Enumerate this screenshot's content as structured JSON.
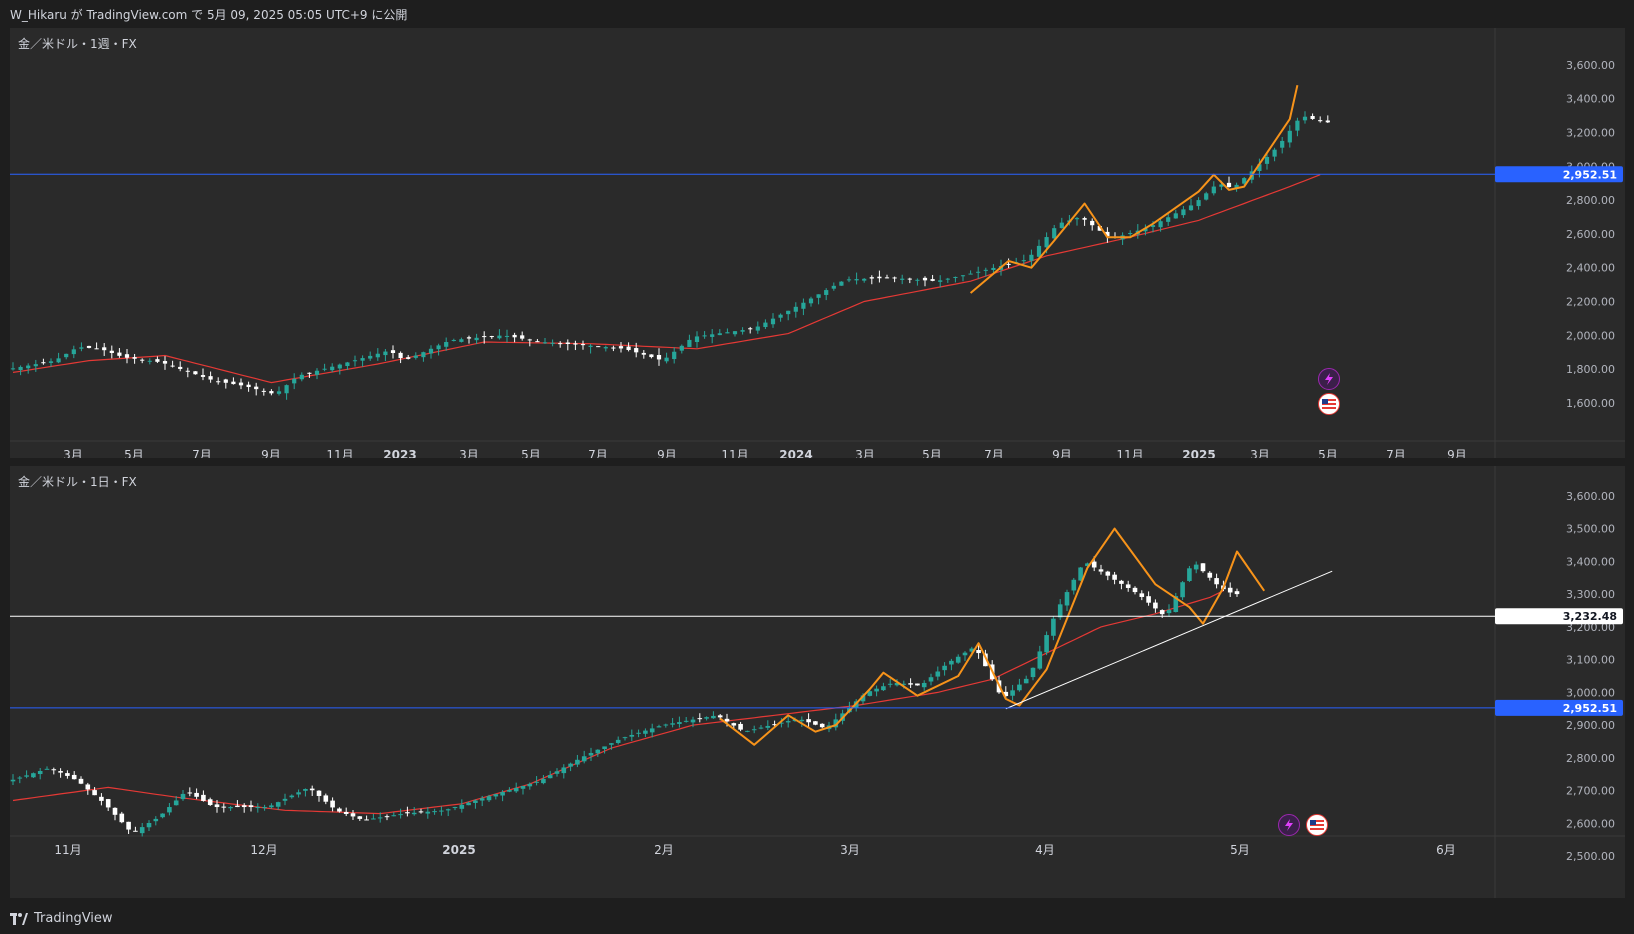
{
  "header": {
    "title": "W_Hikaru が TradingView.com で 5月 09, 2025 05:05 UTC+9 に公開"
  },
  "footer": {
    "brand": "TradingView"
  },
  "colors": {
    "bull": "#26a69a",
    "bear": "#ffffff",
    "ma": "#e53935",
    "pattern": "#f7931a",
    "hline": "#2962ff",
    "trend": "#ffffff"
  },
  "icons": [
    "lightning-icon",
    "us-flag-icon"
  ],
  "chart_data": [
    {
      "type": "candlestick",
      "title": "金／米ドル・1週・FX",
      "y_ticks": [
        3600,
        3400,
        3200,
        3000,
        2800,
        2600,
        2400,
        2200,
        2000,
        1800,
        1600
      ],
      "y_tick_labels": [
        "3,600.00",
        "3,400.00",
        "3,200.00",
        "3,000.00",
        "2,800.00",
        "2,600.00",
        "2,400.00",
        "2,200.00",
        "2,000.00",
        "1,800.00",
        "1,600.00"
      ],
      "ylim": [
        1540,
        3700
      ],
      "x_tick_labels": [
        "3月",
        "5月",
        "7月",
        "9月",
        "11月",
        "2023",
        "3月",
        "5月",
        "7月",
        "9月",
        "11月",
        "2024",
        "3月",
        "5月",
        "7月",
        "9月",
        "11月",
        "2025",
        "3月",
        "5月",
        "7月",
        "9月"
      ],
      "horizontal_lines": [
        {
          "value": 2952.51,
          "label": "2,952.51",
          "color": "#2962ff"
        }
      ],
      "price_path": [
        [
          0,
          1800
        ],
        [
          6,
          1850
        ],
        [
          9,
          1930
        ],
        [
          12,
          1920
        ],
        [
          15,
          1870
        ],
        [
          20,
          1840
        ],
        [
          27,
          1730
        ],
        [
          31,
          1700
        ],
        [
          35,
          1650
        ],
        [
          38,
          1760
        ],
        [
          43,
          1820
        ],
        [
          50,
          1910
        ],
        [
          52,
          1850
        ],
        [
          58,
          1970
        ],
        [
          65,
          2000
        ],
        [
          70,
          1960
        ],
        [
          76,
          1940
        ],
        [
          81,
          1920
        ],
        [
          86,
          1850
        ],
        [
          90,
          1990
        ],
        [
          98,
          2040
        ],
        [
          104,
          2180
        ],
        [
          110,
          2330
        ],
        [
          116,
          2340
        ],
        [
          122,
          2320
        ],
        [
          127,
          2370
        ],
        [
          134,
          2450
        ],
        [
          138,
          2660
        ],
        [
          141,
          2700
        ],
        [
          145,
          2570
        ],
        [
          150,
          2640
        ],
        [
          156,
          2780
        ],
        [
          159,
          2900
        ],
        [
          161,
          2870
        ],
        [
          164,
          2990
        ],
        [
          167,
          3120
        ],
        [
          170,
          3300
        ],
        [
          173,
          3260
        ]
      ],
      "ma_path": [
        [
          0,
          1780
        ],
        [
          10,
          1850
        ],
        [
          20,
          1880
        ],
        [
          34,
          1720
        ],
        [
          48,
          1830
        ],
        [
          62,
          1960
        ],
        [
          76,
          1950
        ],
        [
          90,
          1920
        ],
        [
          102,
          2010
        ],
        [
          112,
          2200
        ],
        [
          126,
          2320
        ],
        [
          136,
          2470
        ],
        [
          146,
          2570
        ],
        [
          156,
          2680
        ],
        [
          162,
          2780
        ],
        [
          168,
          2880
        ],
        [
          172,
          2950
        ]
      ],
      "pattern_path": [
        [
          126,
          2250
        ],
        [
          131,
          2440
        ],
        [
          134,
          2400
        ],
        [
          137,
          2560
        ],
        [
          141,
          2780
        ],
        [
          144,
          2580
        ],
        [
          147,
          2580
        ],
        [
          150,
          2660
        ],
        [
          156,
          2850
        ],
        [
          158,
          2950
        ],
        [
          160,
          2860
        ],
        [
          162,
          2880
        ],
        [
          165,
          3080
        ],
        [
          168,
          3280
        ],
        [
          169,
          3480
        ]
      ]
    },
    {
      "type": "candlestick",
      "title": "金／米ドル・1日・FX",
      "y_ticks": [
        3600,
        3500,
        3400,
        3300,
        3200,
        3100,
        3000,
        2900,
        2800,
        2700,
        2600,
        2500
      ],
      "y_tick_labels": [
        "3,600.00",
        "3,500.00",
        "3,400.00",
        "3,300.00",
        "3,200.00",
        "3,100.00",
        "3,000.00",
        "2,900.00",
        "2,800.00",
        "2,700.00",
        "2,600.00",
        "2,500.00"
      ],
      "ylim": [
        2470,
        3630
      ],
      "x_tick_labels": [
        "11月",
        "12月",
        "2025",
        "2月",
        "3月",
        "4月",
        "5月",
        "6月"
      ],
      "horizontal_lines": [
        {
          "value": 3232.48,
          "label": "3,232.48",
          "color": "#ffffff"
        },
        {
          "value": 2952.51,
          "label": "2,952.51",
          "color": "#2962ff"
        }
      ],
      "price_path": [
        [
          0,
          2730
        ],
        [
          6,
          2770
        ],
        [
          10,
          2730
        ],
        [
          14,
          2660
        ],
        [
          18,
          2570
        ],
        [
          22,
          2620
        ],
        [
          26,
          2700
        ],
        [
          30,
          2650
        ],
        [
          38,
          2650
        ],
        [
          44,
          2710
        ],
        [
          48,
          2640
        ],
        [
          52,
          2610
        ],
        [
          58,
          2630
        ],
        [
          64,
          2640
        ],
        [
          70,
          2680
        ],
        [
          78,
          2730
        ],
        [
          84,
          2800
        ],
        [
          90,
          2860
        ],
        [
          96,
          2900
        ],
        [
          104,
          2930
        ],
        [
          108,
          2880
        ],
        [
          112,
          2900
        ],
        [
          116,
          2920
        ],
        [
          120,
          2890
        ],
        [
          126,
          3000
        ],
        [
          130,
          3030
        ],
        [
          134,
          3020
        ],
        [
          138,
          3090
        ],
        [
          142,
          3140
        ],
        [
          146,
          2980
        ],
        [
          150,
          3050
        ],
        [
          154,
          3250
        ],
        [
          158,
          3400
        ],
        [
          162,
          3350
        ],
        [
          166,
          3300
        ],
        [
          170,
          3230
        ],
        [
          174,
          3400
        ],
        [
          178,
          3320
        ],
        [
          180,
          3300
        ]
      ],
      "ma_path": [
        [
          0,
          2670
        ],
        [
          14,
          2710
        ],
        [
          24,
          2680
        ],
        [
          40,
          2640
        ],
        [
          54,
          2630
        ],
        [
          66,
          2660
        ],
        [
          76,
          2720
        ],
        [
          88,
          2830
        ],
        [
          100,
          2900
        ],
        [
          112,
          2930
        ],
        [
          124,
          2960
        ],
        [
          136,
          3000
        ],
        [
          144,
          3040
        ],
        [
          152,
          3120
        ],
        [
          160,
          3200
        ],
        [
          168,
          3240
        ],
        [
          176,
          3290
        ],
        [
          178,
          3310
        ]
      ],
      "pattern_path": [
        [
          104,
          2920
        ],
        [
          109,
          2840
        ],
        [
          114,
          2930
        ],
        [
          118,
          2880
        ],
        [
          121,
          2900
        ],
        [
          126,
          3010
        ],
        [
          128,
          3060
        ],
        [
          133,
          2990
        ],
        [
          139,
          3050
        ],
        [
          142,
          3150
        ],
        [
          146,
          2980
        ],
        [
          148,
          2960
        ],
        [
          152,
          3070
        ],
        [
          158,
          3380
        ],
        [
          162,
          3500
        ],
        [
          168,
          3330
        ],
        [
          173,
          3260
        ],
        [
          175,
          3210
        ],
        [
          178,
          3320
        ],
        [
          180,
          3430
        ],
        [
          184,
          3310
        ]
      ],
      "trend_line": [
        [
          146,
          2950
        ],
        [
          194,
          3370
        ]
      ]
    }
  ]
}
